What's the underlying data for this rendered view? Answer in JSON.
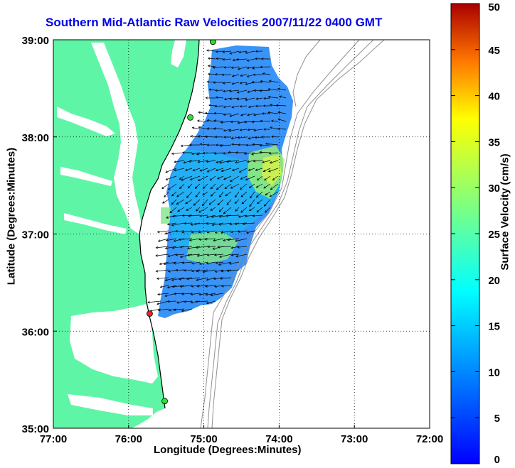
{
  "title": "Southern Mid-Atlantic Raw Velocities 2007/11/22 0400 GMT",
  "map": {
    "xlabel": "Longitude (Degrees:Minutes)",
    "ylabel": "Latitude (Degrees:Minutes)",
    "lon_range": [
      -77,
      -72
    ],
    "lat_range": [
      35,
      39
    ],
    "x_ticks": [
      "77:00",
      "76:00",
      "75:00",
      "74:00",
      "73:00",
      "72:00"
    ],
    "y_ticks": [
      "39:00",
      "38:00",
      "37:00",
      "36:00",
      "35:00"
    ],
    "grid": "dotted",
    "land_color": "#5ff5a7",
    "water_color": "#ffffff",
    "bathymetry_color": "#909090",
    "stations": [
      {
        "lon": -74.88,
        "lat": 38.98,
        "color": "#33dd33"
      },
      {
        "lon": -75.18,
        "lat": 38.2,
        "color": "#33dd33"
      },
      {
        "lon": -75.72,
        "lat": 36.18,
        "color": "#ee2222"
      },
      {
        "lon": -75.52,
        "lat": 35.28,
        "color": "#33dd33"
      }
    ]
  },
  "colorbar": {
    "label": "Surface Velocity (cm/s)",
    "min": 0,
    "max": 50,
    "ticks": [
      "50",
      "45",
      "40",
      "35",
      "30",
      "25",
      "20",
      "15",
      "10",
      "5",
      "0"
    ],
    "colormap": "jet"
  }
}
